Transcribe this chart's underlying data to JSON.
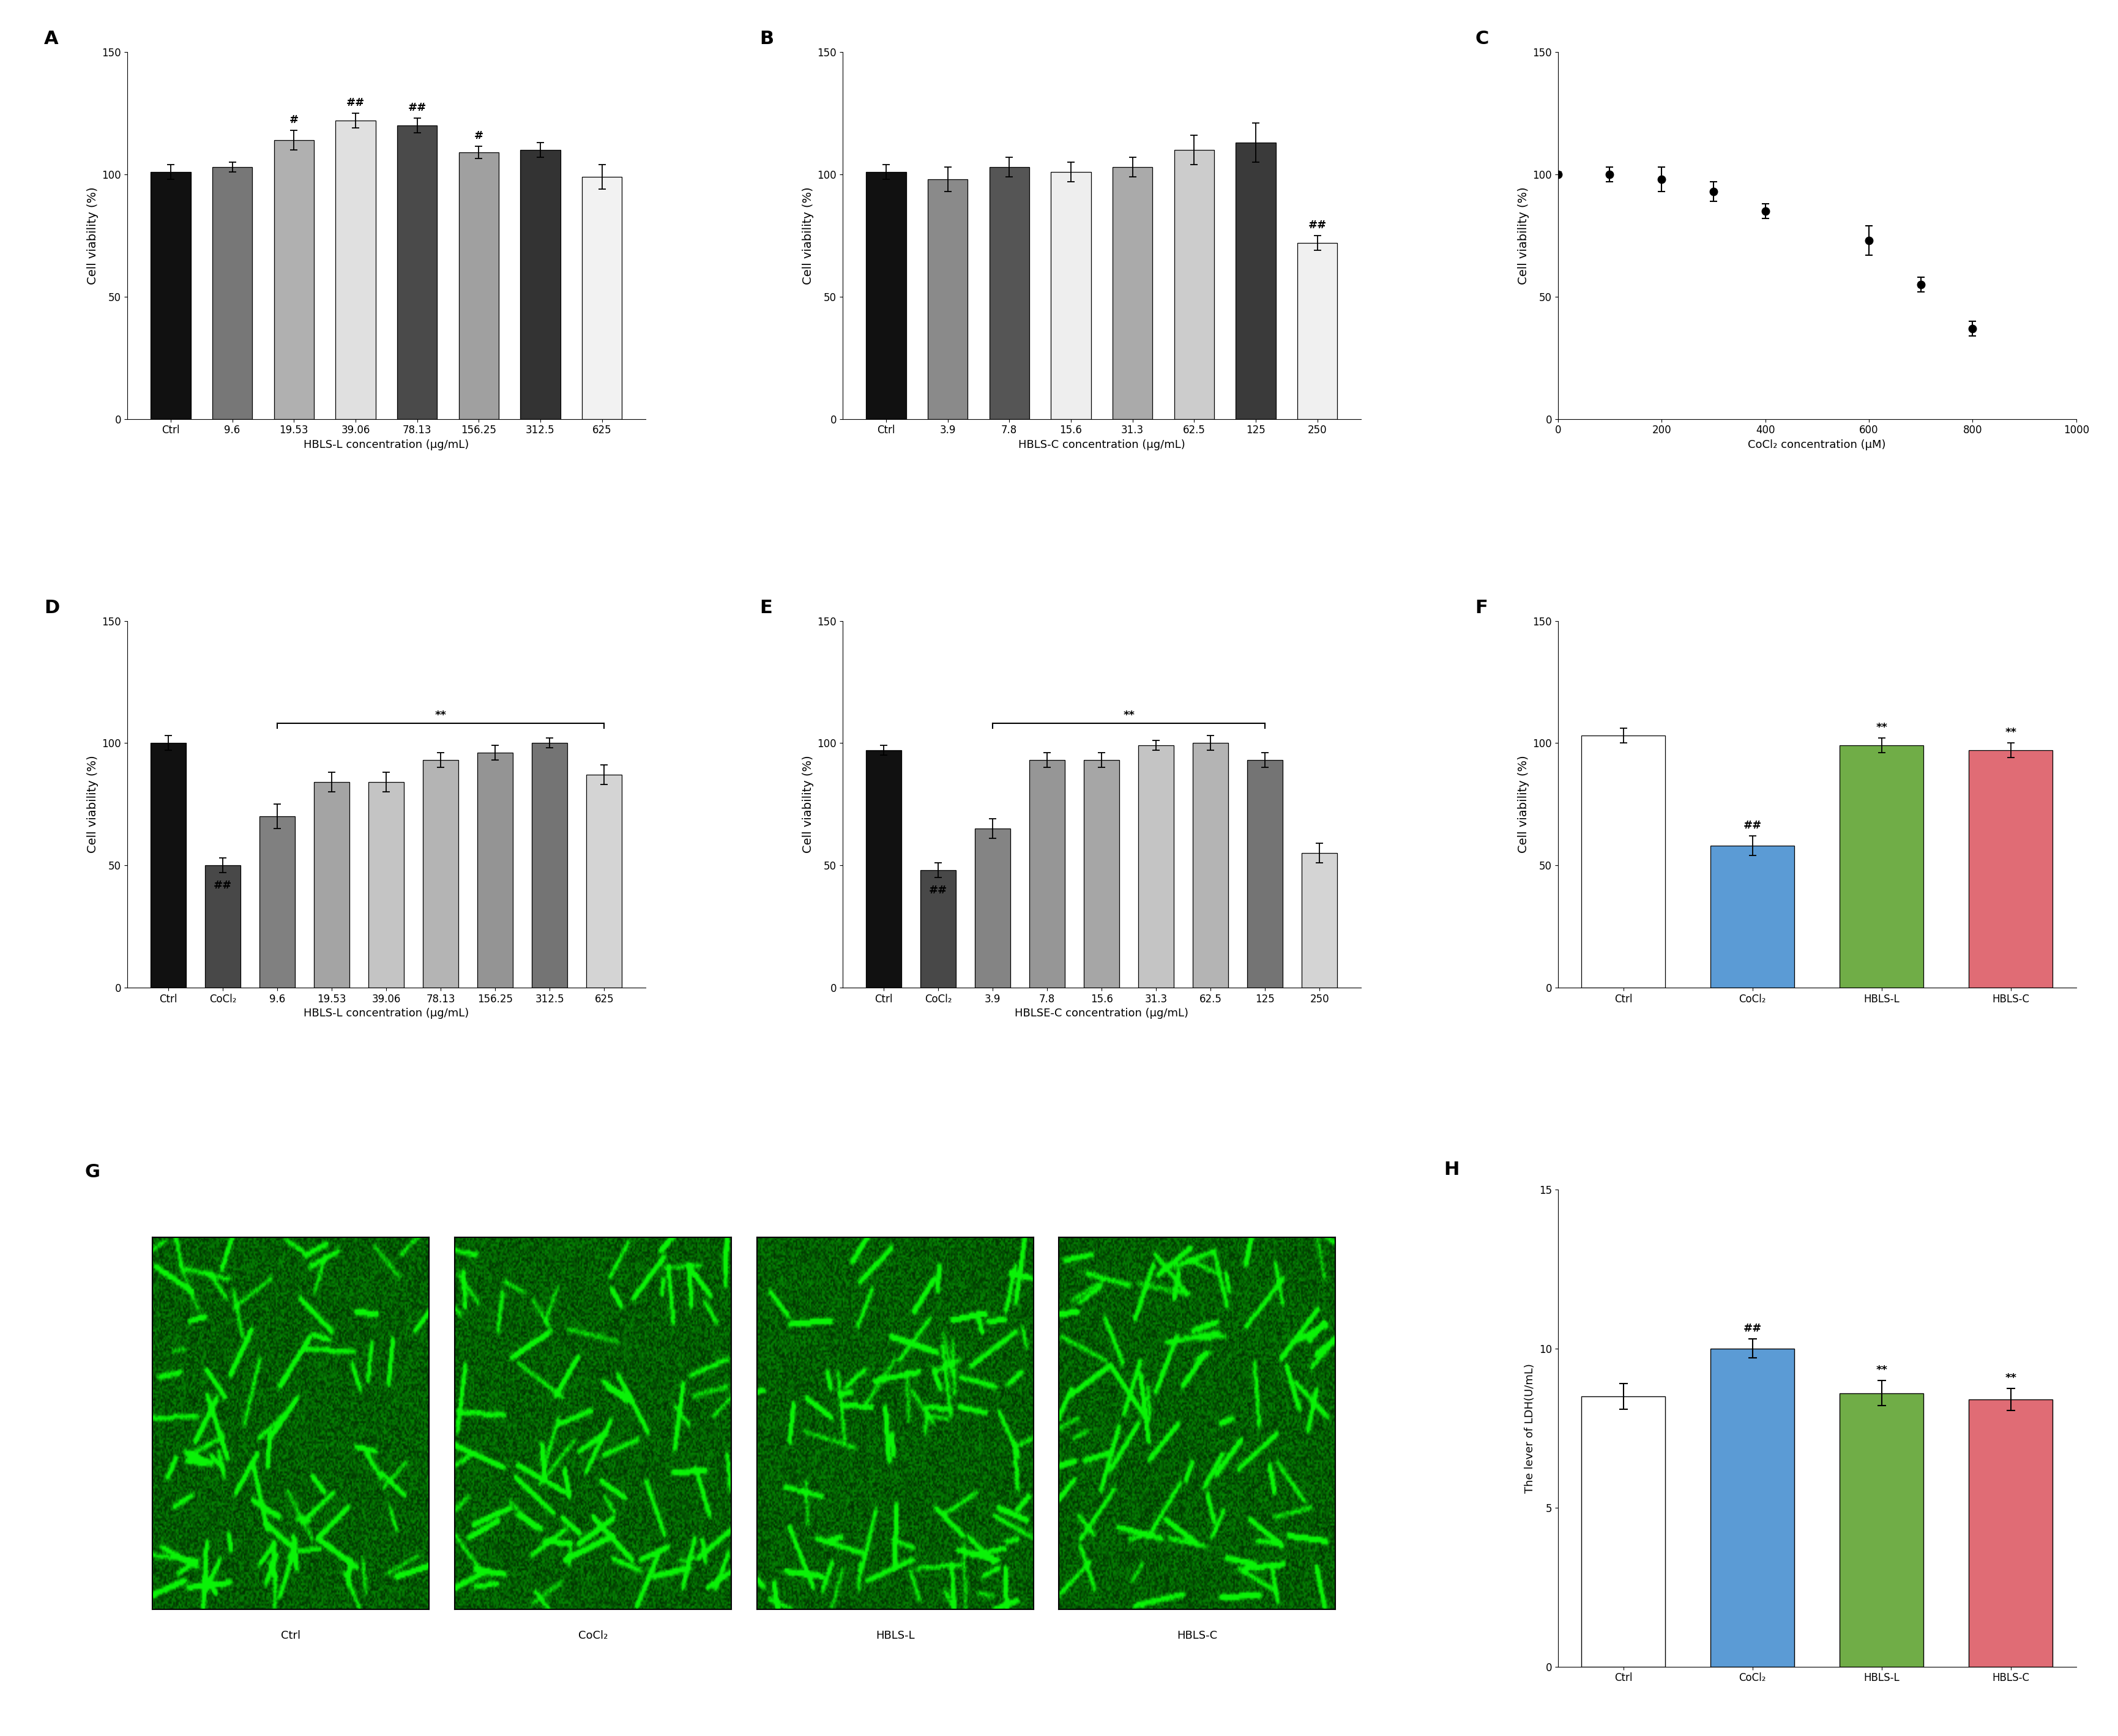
{
  "panel_A": {
    "categories": [
      "Ctrl",
      "9.6",
      "19.53",
      "39.06",
      "78.13",
      "156.25",
      "312.5",
      "625"
    ],
    "values": [
      101,
      103,
      114,
      122,
      120,
      109,
      110,
      99
    ],
    "errors": [
      3,
      2,
      4,
      3,
      3,
      2.5,
      3,
      5
    ],
    "colors": [
      "#111111",
      "#777777",
      "#b0b0b0",
      "#e0e0e0",
      "#4a4a4a",
      "#a0a0a0",
      "#333333",
      "#f2f2f2"
    ],
    "sig_labels": [
      "",
      "",
      "#",
      "##",
      "##",
      "#",
      "",
      ""
    ],
    "xlabel": "HBLS-L concentration (μg/mL)",
    "ylabel": "Cell viability (%)",
    "ylim": [
      0,
      150
    ],
    "yticks": [
      0,
      50,
      100,
      150
    ],
    "panel_label": "A"
  },
  "panel_B": {
    "categories": [
      "Ctrl",
      "3.9",
      "7.8",
      "15.6",
      "31.3",
      "62.5",
      "125",
      "250"
    ],
    "values": [
      101,
      98,
      103,
      101,
      103,
      110,
      113,
      72
    ],
    "errors": [
      3,
      5,
      4,
      4,
      4,
      6,
      8,
      3
    ],
    "colors": [
      "#111111",
      "#8a8a8a",
      "#555555",
      "#eeeeee",
      "#aaaaaa",
      "#cccccc",
      "#3a3a3a",
      "#f0f0f0"
    ],
    "sig_labels": [
      "",
      "",
      "",
      "",
      "",
      "",
      "",
      "##"
    ],
    "xlabel": "HBLS-C concentration (μg/mL)",
    "ylabel": "Cell viability (%)",
    "ylim": [
      0,
      150
    ],
    "yticks": [
      0,
      50,
      100,
      150
    ],
    "panel_label": "B"
  },
  "panel_C": {
    "x_data": [
      0,
      100,
      200,
      300,
      400,
      600,
      700,
      800
    ],
    "y_data": [
      100,
      100,
      98,
      93,
      85,
      73,
      55,
      37
    ],
    "errors": [
      1,
      3,
      5,
      4,
      3,
      6,
      3,
      3
    ],
    "xlabel": "CoCl₂ concentration (μM)",
    "ylabel": "Cell viability (%)",
    "ylim": [
      0,
      150
    ],
    "yticks": [
      0,
      50,
      100,
      150
    ],
    "xlim": [
      0,
      1000
    ],
    "xticks": [
      0,
      200,
      400,
      600,
      800,
      1000
    ],
    "panel_label": "C"
  },
  "panel_D": {
    "categories": [
      "Ctrl",
      "CoCl₂",
      "9.6",
      "19.53",
      "39.06",
      "78.13",
      "156.25",
      "312.5",
      "625"
    ],
    "values": [
      100,
      50,
      70,
      84,
      84,
      93,
      96,
      100,
      87
    ],
    "errors": [
      3,
      3,
      5,
      4,
      4,
      3,
      3,
      2,
      4
    ],
    "colors": [
      "#111111",
      "#484848",
      "#808080",
      "#a4a4a4",
      "#c4c4c4",
      "#b4b4b4",
      "#949494",
      "#747474",
      "#d4d4d4"
    ],
    "sig_label_cocl2": "##",
    "bracket_start": 2,
    "bracket_end": 8,
    "bracket_label": "**",
    "bracket_y": 108,
    "xlabel": "HBLS-L concentration (μg/mL)",
    "ylabel": "Cell viability (%)",
    "ylim": [
      0,
      150
    ],
    "yticks": [
      0,
      50,
      100,
      150
    ],
    "panel_label": "D"
  },
  "panel_E": {
    "categories": [
      "Ctrl",
      "CoCl₂",
      "3.9",
      "7.8",
      "15.6",
      "31.3",
      "62.5",
      "125",
      "250"
    ],
    "values": [
      97,
      48,
      65,
      93,
      93,
      99,
      100,
      93,
      55
    ],
    "errors": [
      2,
      3,
      4,
      3,
      3,
      2,
      3,
      3,
      4
    ],
    "colors": [
      "#111111",
      "#484848",
      "#848484",
      "#969696",
      "#a6a6a6",
      "#c4c4c4",
      "#b4b4b4",
      "#747474",
      "#d4d4d4"
    ],
    "sig_label_cocl2": "##",
    "bracket_start": 2,
    "bracket_end": 7,
    "bracket_label": "**",
    "bracket_y": 108,
    "xlabel": "HBLSE-C concentration (μg/mL)",
    "ylabel": "Cell viability (%)",
    "ylim": [
      0,
      150
    ],
    "yticks": [
      0,
      50,
      100,
      150
    ],
    "panel_label": "E"
  },
  "panel_F": {
    "categories": [
      "Ctrl",
      "CoCl₂",
      "HBLS-L",
      "HBLS-C"
    ],
    "values": [
      103,
      58,
      99,
      97
    ],
    "errors": [
      3,
      4,
      3,
      3
    ],
    "colors": [
      "#ffffff",
      "#5b9bd5",
      "#70ad47",
      "#e06c75"
    ],
    "sig_labels": [
      "",
      "##",
      "**",
      "**"
    ],
    "ylabel": "Cell viability (%)",
    "ylim": [
      0,
      150
    ],
    "yticks": [
      0,
      50,
      100,
      150
    ],
    "panel_label": "F"
  },
  "panel_G": {
    "labels": [
      "Ctrl",
      "CoCl₂",
      "HBLS-L",
      "HBLS-C"
    ],
    "panel_label": "G"
  },
  "panel_H": {
    "categories": [
      "Ctrl",
      "CoCl₂",
      "HBLS-L",
      "HBLS-C"
    ],
    "values": [
      8.5,
      10.0,
      8.6,
      8.4
    ],
    "errors": [
      0.4,
      0.3,
      0.4,
      0.35
    ],
    "colors": [
      "#ffffff",
      "#5b9bd5",
      "#70ad47",
      "#e06c75"
    ],
    "sig_labels": [
      "",
      "##",
      "**",
      "**"
    ],
    "ylabel": "The lever of LDH(U/mL)",
    "ylim": [
      0,
      15
    ],
    "yticks": [
      0,
      5,
      10,
      15
    ],
    "panel_label": "H"
  }
}
